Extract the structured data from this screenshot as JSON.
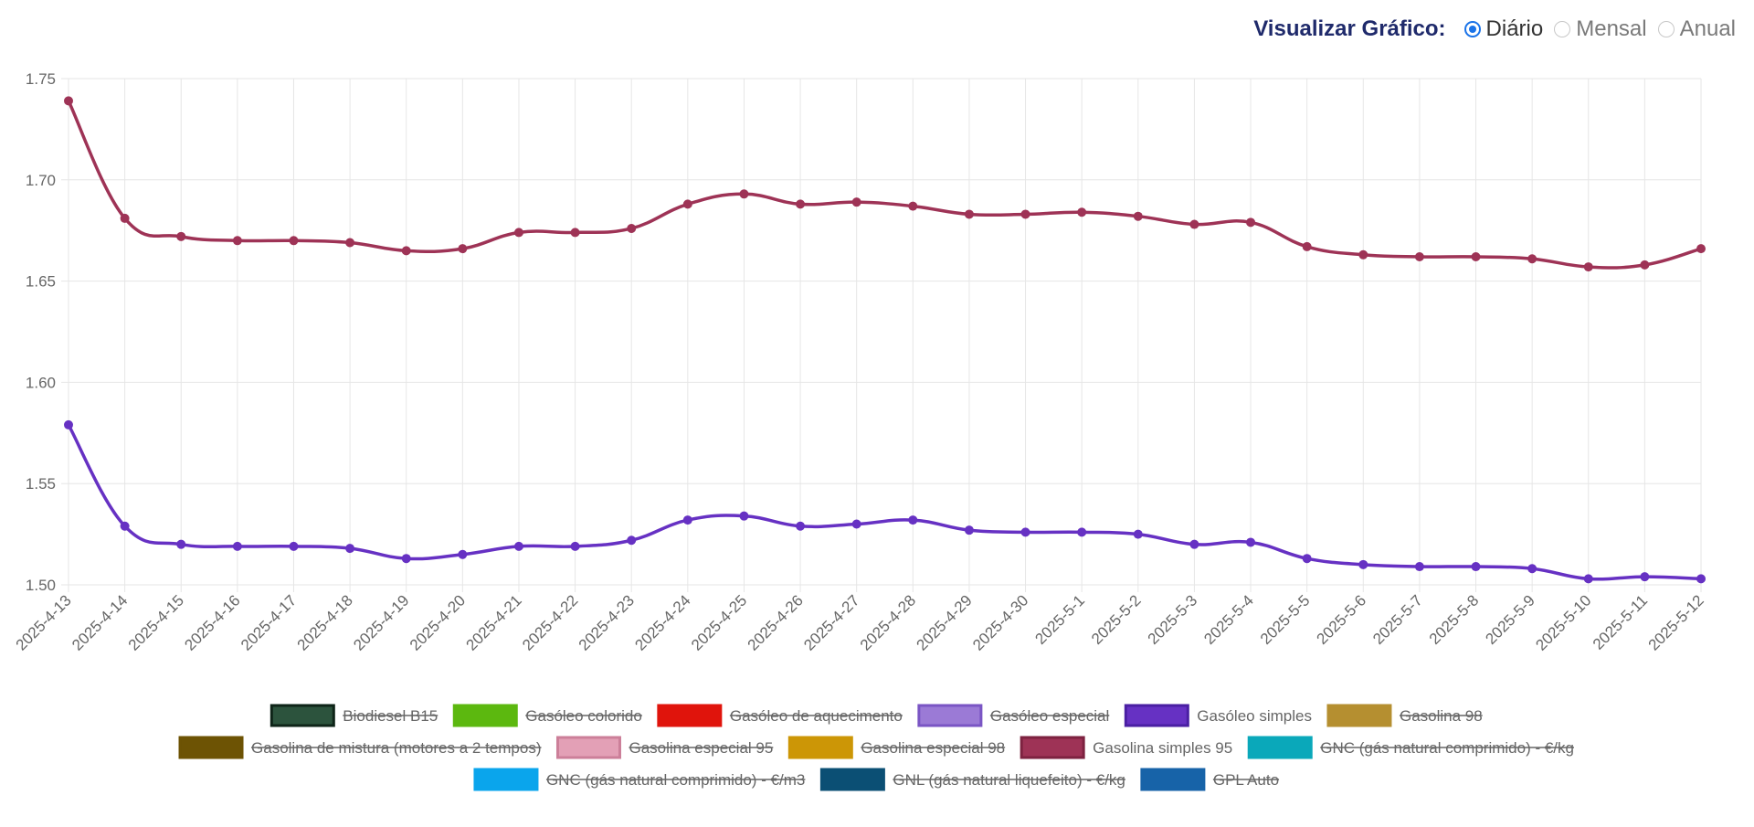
{
  "view_selector": {
    "label": "Visualizar Gráfico:",
    "options": [
      {
        "label": "Diário",
        "checked": true
      },
      {
        "label": "Mensal",
        "checked": false
      },
      {
        "label": "Anual",
        "checked": false
      }
    ]
  },
  "chart_data": {
    "type": "line",
    "title": "",
    "xlabel": "",
    "ylabel": "",
    "ylim": [
      1.5,
      1.75
    ],
    "yticks": [
      "1.50",
      "1.55",
      "1.60",
      "1.65",
      "1.70",
      "1.75"
    ],
    "grid": true,
    "categories": [
      "2025-4-13",
      "2025-4-14",
      "2025-4-15",
      "2025-4-16",
      "2025-4-17",
      "2025-4-18",
      "2025-4-19",
      "2025-4-20",
      "2025-4-21",
      "2025-4-22",
      "2025-4-23",
      "2025-4-24",
      "2025-4-25",
      "2025-4-26",
      "2025-4-27",
      "2025-4-28",
      "2025-4-29",
      "2025-4-30",
      "2025-5-1",
      "2025-5-2",
      "2025-5-3",
      "2025-5-4",
      "2025-5-5",
      "2025-5-6",
      "2025-5-7",
      "2025-5-8",
      "2025-5-9",
      "2025-5-10",
      "2025-5-11",
      "2025-5-12"
    ],
    "series": [
      {
        "name": "Gasolina simples 95",
        "color": "#9e3356",
        "values": [
          1.739,
          1.681,
          1.672,
          1.67,
          1.67,
          1.669,
          1.665,
          1.666,
          1.674,
          1.674,
          1.676,
          1.688,
          1.693,
          1.688,
          1.689,
          1.687,
          1.683,
          1.683,
          1.684,
          1.682,
          1.678,
          1.679,
          1.667,
          1.663,
          1.662,
          1.662,
          1.661,
          1.657,
          1.658,
          1.666
        ]
      },
      {
        "name": "Gasóleo simples",
        "color": "#6631c3",
        "values": [
          1.579,
          1.529,
          1.52,
          1.519,
          1.519,
          1.518,
          1.513,
          1.515,
          1.519,
          1.519,
          1.522,
          1.532,
          1.534,
          1.529,
          1.53,
          1.532,
          1.527,
          1.526,
          1.526,
          1.525,
          1.52,
          1.521,
          1.513,
          1.51,
          1.509,
          1.509,
          1.508,
          1.503,
          1.504,
          1.503
        ]
      }
    ],
    "legend_position": "bottom",
    "legend": [
      [
        {
          "name": "Biodiesel B15",
          "color": "#2c533d",
          "border": "#0e2418",
          "hidden": true
        },
        {
          "name": "Gasóleo colorido",
          "color": "#5cb80f",
          "border": "#5cb80f",
          "hidden": true
        },
        {
          "name": "Gasóleo de aquecimento",
          "color": "#e0140c",
          "border": "#e0140c",
          "hidden": true
        },
        {
          "name": "Gasóleo especial",
          "color": "#9b7ad6",
          "border": "#7a55c4",
          "hidden": true
        },
        {
          "name": "Gasóleo simples",
          "color": "#6631c3",
          "border": "#4a1fa3",
          "hidden": false
        },
        {
          "name": "Gasolina 98",
          "color": "#b58f30",
          "border": "#b58f30",
          "hidden": true
        }
      ],
      [
        {
          "name": "Gasolina de mistura (motores a 2 tempos)",
          "color": "#6d5304",
          "border": "#6d5304",
          "hidden": true
        },
        {
          "name": "Gasolina especial 95",
          "color": "#e3a0b6",
          "border": "#cc7f99",
          "hidden": true
        },
        {
          "name": "Gasolina especial 98",
          "color": "#cc9606",
          "border": "#cc9606",
          "hidden": true
        },
        {
          "name": "Gasolina simples 95",
          "color": "#9e3356",
          "border": "#7d2240",
          "hidden": false
        },
        {
          "name": "GNC (gás natural comprimido) - €/kg",
          "color": "#0aa8ba",
          "border": "#0aa8ba",
          "hidden": true
        }
      ],
      [
        {
          "name": "GNC (gás natural comprimido) - €/m3",
          "color": "#0aa5ec",
          "border": "#0aa5ec",
          "hidden": true
        },
        {
          "name": "GNL (gás natural liquefeito) - €/kg",
          "color": "#0b4f74",
          "border": "#0b4f74",
          "hidden": true
        },
        {
          "name": "GPL Auto",
          "color": "#1763a8",
          "border": "#1763a8",
          "hidden": true
        }
      ]
    ]
  }
}
